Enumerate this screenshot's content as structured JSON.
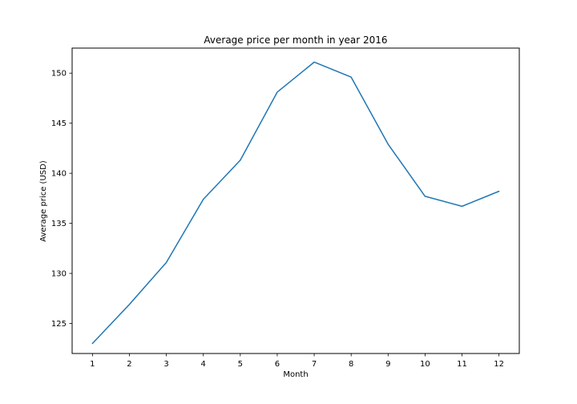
{
  "chart_data": {
    "type": "line",
    "title": "Average price per month in year 2016",
    "xlabel": "Month",
    "ylabel": "Average price (USD)",
    "x": [
      1,
      2,
      3,
      4,
      5,
      6,
      7,
      8,
      9,
      10,
      11,
      12
    ],
    "xticks": [
      "1",
      "2",
      "3",
      "4",
      "5",
      "6",
      "7",
      "8",
      "9",
      "10",
      "11",
      "12"
    ],
    "yticks": [
      "125",
      "130",
      "135",
      "140",
      "145",
      "150"
    ],
    "ytick_values": [
      125,
      130,
      135,
      140,
      145,
      150
    ],
    "xlim": [
      0.45,
      12.55
    ],
    "ylim": [
      122.0,
      152.5
    ],
    "grid": false,
    "series": [
      {
        "color": "#1f77b4",
        "values": [
          123.0,
          126.9,
          131.1,
          137.4,
          141.3,
          148.1,
          151.1,
          149.6,
          142.9,
          137.7,
          136.7,
          138.2
        ]
      }
    ]
  }
}
